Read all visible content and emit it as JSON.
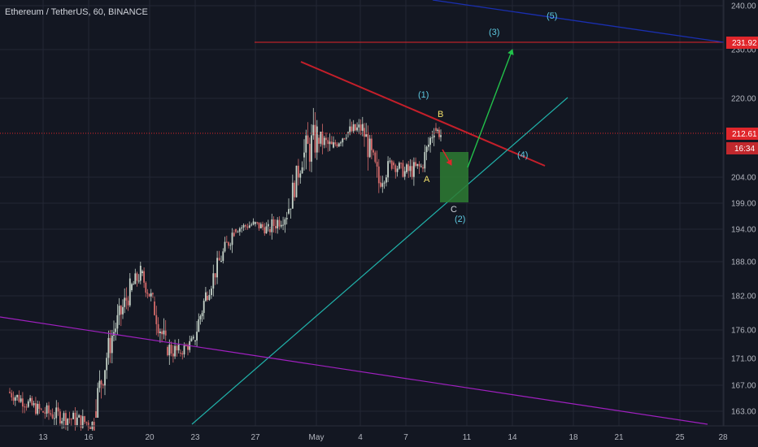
{
  "header": {
    "title": "Ethereum / TetherUS, 60, BINANCE"
  },
  "colors": {
    "background": "#131722",
    "grid": "#232734",
    "up": "#c5d3c9",
    "down": "#d46a6a",
    "resistance_red": "#e0262b",
    "trend_red": "#c41f2a",
    "support_cyan": "#20b2aa",
    "support_magenta": "#a020c0",
    "upper_blue": "#1a2fb0",
    "arrow_green": "#22c14a",
    "arrow_red": "#e0262b",
    "box_green": "#2e7d32",
    "wave_cyan": "#5dc8e0",
    "label_yellow": "#f2e06b",
    "price_tag_red": "#e0262b",
    "price_tag_dark": "#c1282d"
  },
  "chart_data": {
    "type": "candlestick",
    "symbol": "Ethereum / TetherUS",
    "interval": "60",
    "exchange": "BINANCE",
    "y_ticks": [
      "240.00",
      "230.00",
      "220.00",
      "204.00",
      "199.00",
      "194.00",
      "188.00",
      "182.00",
      "176.00",
      "171.00",
      "167.00",
      "163.00"
    ],
    "x_ticks": [
      "13",
      "16",
      "20",
      "23",
      "27",
      "May",
      "4",
      "7",
      "11",
      "14",
      "18",
      "21",
      "25",
      "28"
    ],
    "current_price": "212.61",
    "countdown": "16:34",
    "resistance_price": "231.92",
    "wave_labels": [
      "(1)",
      "(2)",
      "(3)",
      "(4)",
      "(5)"
    ],
    "abc_labels": [
      "A",
      "B",
      "C"
    ],
    "candles_approx": [
      {
        "date": "Apr 11",
        "open": 166,
        "high": 168,
        "low": 162,
        "close": 163
      },
      {
        "date": "Apr 13",
        "open": 163,
        "high": 167,
        "low": 160,
        "close": 161
      },
      {
        "date": "Apr 16",
        "open": 163,
        "high": 176,
        "low": 162,
        "close": 175
      },
      {
        "date": "Apr 17",
        "open": 175,
        "high": 186,
        "low": 174,
        "close": 183
      },
      {
        "date": "Apr 18",
        "open": 183,
        "high": 188,
        "low": 179,
        "close": 186
      },
      {
        "date": "Apr 19",
        "open": 186,
        "high": 187,
        "low": 178,
        "close": 181
      },
      {
        "date": "Apr 20",
        "open": 181,
        "high": 183,
        "low": 170,
        "close": 173
      },
      {
        "date": "Apr 21",
        "open": 173,
        "high": 177,
        "low": 168,
        "close": 172
      },
      {
        "date": "Apr 22",
        "open": 172,
        "high": 176,
        "low": 170,
        "close": 174
      },
      {
        "date": "Apr 23",
        "open": 174,
        "high": 184,
        "low": 173,
        "close": 182
      },
      {
        "date": "Apr 24",
        "open": 182,
        "high": 190,
        "low": 181,
        "close": 188
      },
      {
        "date": "Apr 25",
        "open": 188,
        "high": 195,
        "low": 186,
        "close": 194
      },
      {
        "date": "Apr 26",
        "open": 194,
        "high": 197,
        "low": 192,
        "close": 195
      },
      {
        "date": "Apr 27",
        "open": 195,
        "high": 198,
        "low": 192,
        "close": 194
      },
      {
        "date": "Apr 28",
        "open": 194,
        "high": 200,
        "low": 191,
        "close": 197
      },
      {
        "date": "Apr 29",
        "open": 197,
        "high": 210,
        "low": 196,
        "close": 208
      },
      {
        "date": "Apr 30",
        "open": 208,
        "high": 227,
        "low": 205,
        "close": 212
      },
      {
        "date": "May 1",
        "open": 212,
        "high": 216,
        "low": 205,
        "close": 210
      },
      {
        "date": "May 2",
        "open": 210,
        "high": 214,
        "low": 207,
        "close": 213
      },
      {
        "date": "May 3",
        "open": 213,
        "high": 219,
        "low": 210,
        "close": 214
      },
      {
        "date": "May 4",
        "open": 214,
        "high": 215,
        "low": 199,
        "close": 203
      },
      {
        "date": "May 5",
        "open": 203,
        "high": 210,
        "low": 200,
        "close": 207
      },
      {
        "date": "May 6",
        "open": 207,
        "high": 210,
        "low": 202,
        "close": 205
      },
      {
        "date": "May 7",
        "open": 205,
        "high": 208,
        "low": 198,
        "close": 206
      },
      {
        "date": "May 8",
        "open": 206,
        "high": 216,
        "low": 205,
        "close": 214
      },
      {
        "date": "May 9",
        "open": 214,
        "high": 216,
        "low": 209,
        "close": 212.61
      }
    ]
  }
}
